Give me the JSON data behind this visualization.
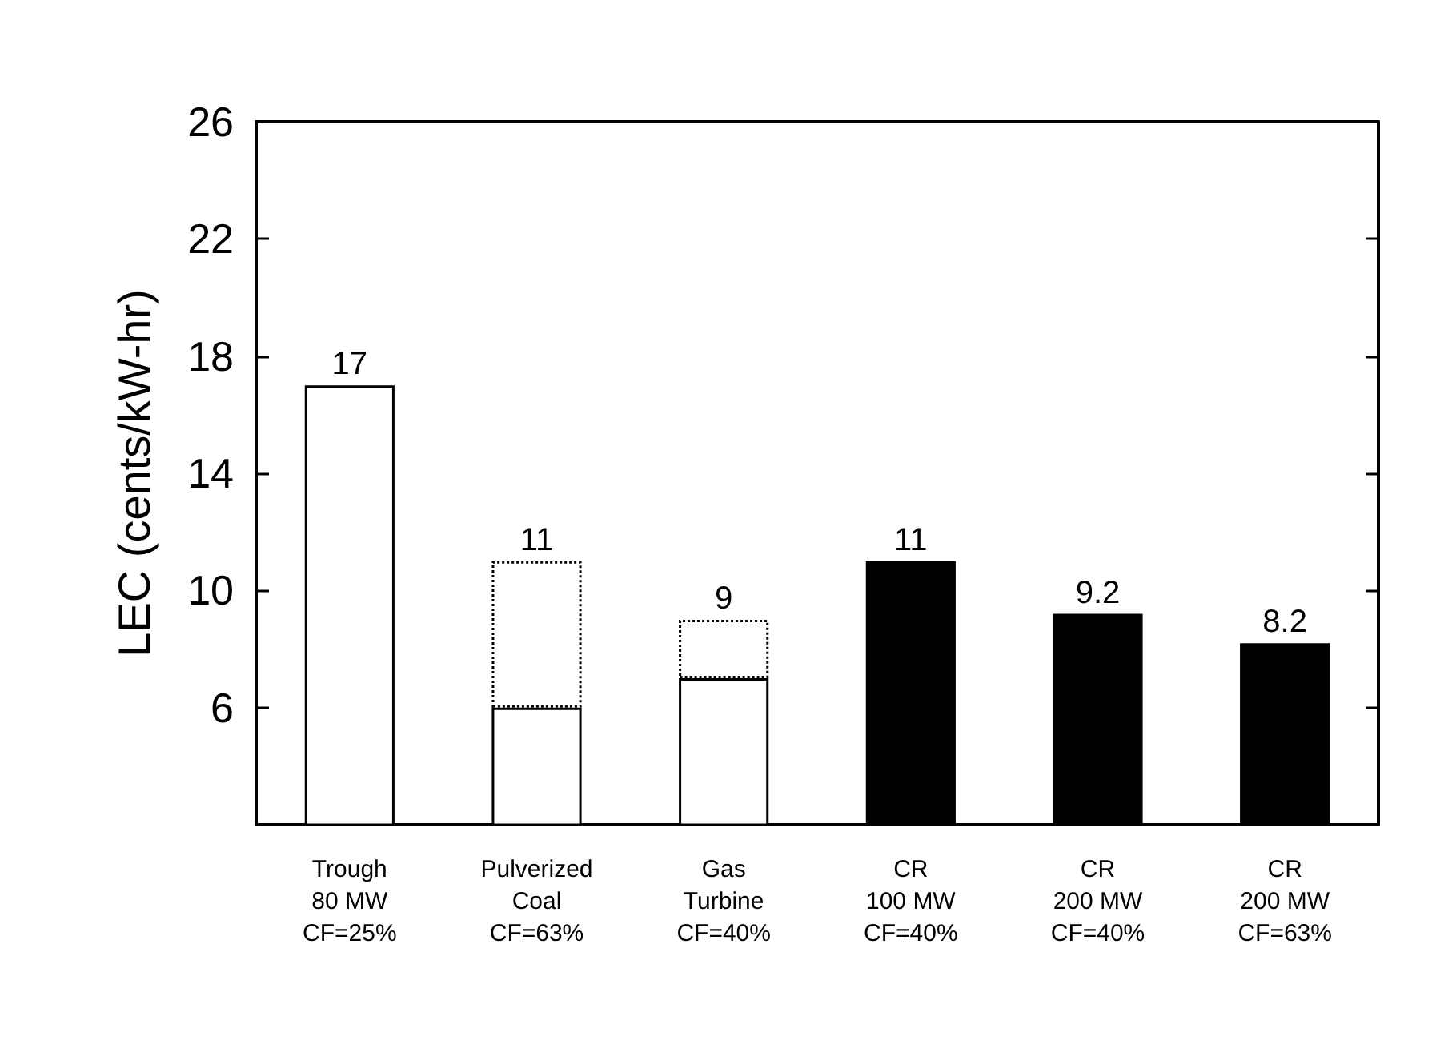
{
  "chart_data": {
    "type": "bar",
    "ylabel": "LEC (cents/kW-hr)",
    "categories": [
      "Trough\n80 MW\nCF=25%",
      "Pulverized\nCoal\nCF=63%",
      "Gas\nTurbine\nCF=40%",
      "CR\n100 MW\nCF=40%",
      "CR\n200 MW\nCF=40%",
      "CR\n200 MW\nCF=63%"
    ],
    "stacked": true,
    "series": [
      {
        "values": [
          17,
          6,
          7,
          11,
          9.2,
          8.2
        ],
        "colors": [
          "#ffffff",
          "#ffffff",
          "#ffffff",
          "#000000",
          "#000000",
          "#000000"
        ],
        "line_style": "solid"
      },
      {
        "values": [
          null,
          5,
          2,
          null,
          null,
          null
        ],
        "color": "#ffffff",
        "line_style": "dotted"
      }
    ],
    "totals": [
      "17",
      "11",
      "9",
      "11",
      "9.2",
      "8.2"
    ],
    "ylim": [
      2,
      26
    ],
    "yticks": [
      6,
      10,
      14,
      18,
      22,
      26
    ],
    "grid": false
  }
}
